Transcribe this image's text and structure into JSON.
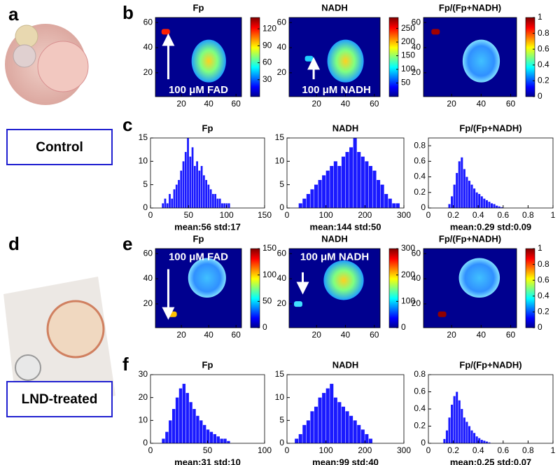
{
  "panel_labels": [
    "a",
    "b",
    "c",
    "d",
    "e",
    "f"
  ],
  "side_labels": [
    "Control",
    "LND-treated"
  ],
  "chart_data": [
    {
      "type": "heatmap",
      "title": "Fp",
      "xlim": [
        1,
        64
      ],
      "ylim": [
        1,
        64
      ],
      "xticks": [
        20,
        40,
        60
      ],
      "yticks": [
        20,
        40,
        60
      ],
      "clim": [
        0,
        140
      ],
      "cticks": [
        30,
        60,
        90,
        120
      ],
      "annotation": "100 μM FAD"
    },
    {
      "type": "heatmap",
      "title": "NADH",
      "xlim": [
        1,
        64
      ],
      "ylim": [
        1,
        64
      ],
      "xticks": [
        20,
        40,
        60
      ],
      "yticks": [
        20,
        40,
        60
      ],
      "clim": [
        0,
        290
      ],
      "cticks": [
        50,
        100,
        150,
        200,
        250
      ],
      "annotation": "100 μM NADH"
    },
    {
      "type": "heatmap",
      "title": "Fp/(Fp+NADH)",
      "xlim": [
        1,
        64
      ],
      "ylim": [
        1,
        64
      ],
      "xticks": [
        20,
        40,
        60
      ],
      "yticks": [
        20,
        40,
        60
      ],
      "clim": [
        0,
        1
      ],
      "cticks": [
        0,
        0.2,
        0.4,
        0.6,
        0.8,
        1
      ]
    },
    {
      "type": "histogram",
      "title": "Fp",
      "annotation": "mean:56 std:17",
      "color": "#1a1aff",
      "xlim": [
        0,
        150
      ],
      "ylim": [
        0,
        15
      ],
      "xticks": [
        0,
        50,
        100,
        150
      ],
      "yticks": [
        0,
        5,
        10,
        15
      ],
      "bins": [
        15,
        18,
        21,
        24,
        27,
        30,
        33,
        36,
        39,
        42,
        45,
        48,
        51,
        54,
        57,
        60,
        63,
        66,
        69,
        72,
        75,
        78,
        81,
        84,
        87,
        90,
        93,
        96,
        99,
        102,
        105
      ],
      "values": [
        1,
        2,
        1,
        3,
        2,
        4,
        5,
        6,
        8,
        10,
        12,
        15,
        11,
        13,
        9,
        10,
        8,
        9,
        7,
        6,
        5,
        4,
        3,
        3,
        2,
        2,
        1,
        1,
        1,
        1
      ]
    },
    {
      "type": "histogram",
      "title": "NADH",
      "annotation": "mean:144 std:50",
      "color": "#1a1aff",
      "xlim": [
        0,
        300
      ],
      "ylim": [
        0,
        15
      ],
      "xticks": [
        0,
        100,
        200,
        300
      ],
      "yticks": [
        0,
        5,
        10,
        15
      ],
      "bins": [
        30,
        40,
        50,
        60,
        70,
        80,
        90,
        100,
        110,
        120,
        130,
        140,
        150,
        160,
        170,
        180,
        190,
        200,
        210,
        220,
        230,
        240,
        250,
        260,
        270,
        280,
        290
      ],
      "values": [
        1,
        2,
        3,
        4,
        5,
        6,
        7,
        8,
        9,
        10,
        9,
        11,
        12,
        13,
        15,
        12,
        11,
        10,
        9,
        8,
        6,
        5,
        3,
        2,
        1,
        1
      ]
    },
    {
      "type": "histogram",
      "title": "Fp/(Fp+NADH)",
      "annotation": "mean:0.29 std:0.09",
      "color": "#1a1aff",
      "xlim": [
        0,
        1
      ],
      "ylim": [
        0,
        0.9
      ],
      "xticks": [
        0,
        0.2,
        0.4,
        0.6,
        0.8,
        1
      ],
      "yticks": [
        0,
        0.2,
        0.4,
        0.6,
        0.8
      ],
      "bins": [
        0.16,
        0.18,
        0.2,
        0.22,
        0.24,
        0.26,
        0.28,
        0.3,
        0.32,
        0.34,
        0.36,
        0.38,
        0.4,
        0.42,
        0.44,
        0.46,
        0.48,
        0.5,
        0.52,
        0.54,
        0.56,
        0.58,
        0.6
      ],
      "values": [
        0.05,
        0.15,
        0.3,
        0.45,
        0.6,
        0.65,
        0.5,
        0.4,
        0.35,
        0.3,
        0.25,
        0.2,
        0.18,
        0.15,
        0.12,
        0.1,
        0.08,
        0.06,
        0.05,
        0.03,
        0.02,
        0.01
      ]
    },
    {
      "type": "heatmap",
      "title": "Fp",
      "xlim": [
        1,
        64
      ],
      "ylim": [
        1,
        64
      ],
      "xticks": [
        20,
        40,
        60
      ],
      "yticks": [
        20,
        40,
        60
      ],
      "clim": [
        0,
        150
      ],
      "cticks": [
        0,
        50,
        100,
        150
      ],
      "annotation": "100 μM FAD"
    },
    {
      "type": "heatmap",
      "title": "NADH",
      "xlim": [
        1,
        64
      ],
      "ylim": [
        1,
        64
      ],
      "xticks": [
        20,
        40,
        60
      ],
      "yticks": [
        20,
        40,
        60
      ],
      "clim": [
        0,
        300
      ],
      "cticks": [
        0,
        100,
        200,
        300
      ],
      "annotation": "100 μM NADH"
    },
    {
      "type": "heatmap",
      "title": "Fp/(Fp+NADH)",
      "xlim": [
        1,
        64
      ],
      "ylim": [
        1,
        64
      ],
      "xticks": [
        20,
        40,
        60
      ],
      "yticks": [
        20,
        40,
        60
      ],
      "clim": [
        0,
        1
      ],
      "cticks": [
        0,
        0.2,
        0.4,
        0.6,
        0.8,
        1
      ]
    },
    {
      "type": "histogram",
      "title": "Fp",
      "annotation": "mean:31 std:10",
      "color": "#1a1aff",
      "xlim": [
        0,
        100
      ],
      "ylim": [
        0,
        30
      ],
      "xticks": [
        0,
        50,
        100
      ],
      "yticks": [
        0,
        10,
        20,
        30
      ],
      "bins": [
        10,
        13,
        16,
        19,
        22,
        25,
        28,
        31,
        34,
        37,
        40,
        43,
        46,
        49,
        52,
        55,
        58,
        61,
        64,
        67,
        70
      ],
      "values": [
        2,
        5,
        10,
        15,
        20,
        24,
        26,
        22,
        18,
        15,
        12,
        10,
        8,
        6,
        5,
        4,
        3,
        2,
        2,
        1
      ]
    },
    {
      "type": "histogram",
      "title": "NADH",
      "annotation": "mean:99 std:40",
      "color": "#1a1aff",
      "xlim": [
        0,
        300
      ],
      "ylim": [
        0,
        15
      ],
      "xticks": [
        0,
        100,
        200,
        300
      ],
      "yticks": [
        0,
        5,
        10,
        15
      ],
      "bins": [
        20,
        30,
        40,
        50,
        60,
        70,
        80,
        90,
        100,
        110,
        120,
        130,
        140,
        150,
        160,
        170,
        180,
        190,
        200,
        210,
        220
      ],
      "values": [
        1,
        2,
        4,
        5,
        7,
        8,
        10,
        11,
        12,
        13,
        10,
        9,
        8,
        7,
        6,
        5,
        4,
        3,
        2,
        1
      ]
    },
    {
      "type": "histogram",
      "title": "Fp/(Fp+NADH)",
      "annotation": "mean:0.25 std:0.07",
      "color": "#1a1aff",
      "xlim": [
        0,
        1
      ],
      "ylim": [
        0,
        0.8
      ],
      "xticks": [
        0,
        0.2,
        0.4,
        0.6,
        0.8,
        1
      ],
      "yticks": [
        0,
        0.2,
        0.4,
        0.6,
        0.8
      ],
      "bins": [
        0.12,
        0.14,
        0.16,
        0.18,
        0.2,
        0.22,
        0.24,
        0.26,
        0.28,
        0.3,
        0.32,
        0.34,
        0.36,
        0.38,
        0.4,
        0.42,
        0.44,
        0.46,
        0.48,
        0.5
      ],
      "values": [
        0.05,
        0.15,
        0.3,
        0.45,
        0.55,
        0.6,
        0.5,
        0.4,
        0.3,
        0.25,
        0.2,
        0.15,
        0.12,
        0.08,
        0.06,
        0.04,
        0.03,
        0.02,
        0.01
      ]
    }
  ]
}
